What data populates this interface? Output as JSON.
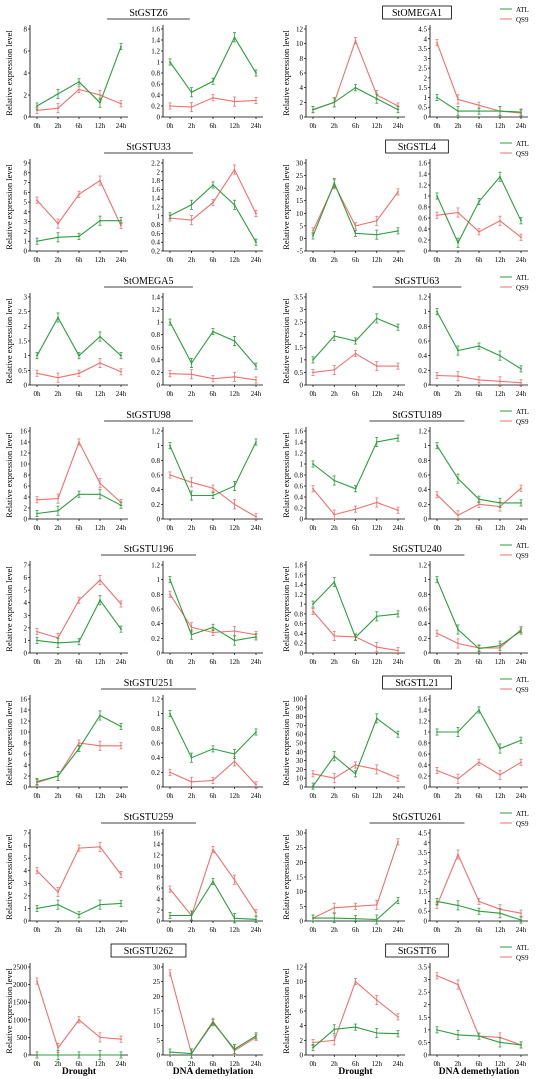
{
  "figure": {
    "ylabel": "Relative expression level",
    "bottom_labels": [
      "Drought",
      "DNA demethylation",
      "Drought",
      "DNA demethylation"
    ],
    "legend": {
      "atl_label": "ATL",
      "qs9_label": "QS9"
    },
    "colors": {
      "atl": "#2e9e3f",
      "qs9": "#f0706f"
    }
  },
  "chart_data": [
    {
      "type": "line",
      "title": "StGSTZ6",
      "title_boxed": false,
      "x": [
        "0h",
        "2h",
        "6h",
        "12h",
        "24h"
      ],
      "left": {
        "ylim": [
          0,
          8
        ],
        "yticks": [
          0,
          2,
          4,
          6,
          8
        ],
        "ATL": [
          1,
          2.1,
          3.2,
          1.3,
          6.4
        ],
        "QS9": [
          0.6,
          0.8,
          2.5,
          2,
          1.2
        ]
      },
      "right": {
        "ylim": [
          0,
          1.6
        ],
        "yticks": [
          0,
          0.2,
          0.4,
          0.6,
          0.8,
          1,
          1.2,
          1.4,
          1.6
        ],
        "ATL": [
          1,
          0.45,
          0.65,
          1.45,
          0.8
        ],
        "QS9": [
          0.2,
          0.18,
          0.35,
          0.28,
          0.3
        ]
      }
    },
    {
      "type": "line",
      "title": "StOMEGA1",
      "title_boxed": true,
      "x": [
        "0h",
        "2h",
        "6h",
        "12h",
        "24h"
      ],
      "left": {
        "ylim": [
          0,
          12
        ],
        "yticks": [
          0,
          2,
          4,
          6,
          8,
          10,
          12
        ],
        "ATL": [
          1,
          2,
          4,
          2.5,
          1
        ],
        "QS9": [
          1,
          2,
          10.4,
          3,
          1.5
        ]
      },
      "right": {
        "ylim": [
          0,
          4.5
        ],
        "yticks": [
          0,
          0.5,
          1,
          1.5,
          2,
          2.5,
          3,
          3.5,
          4,
          4.5
        ],
        "ATL": [
          1,
          0.3,
          0.3,
          0.3,
          0.25
        ],
        "QS9": [
          3.8,
          0.9,
          0.6,
          0.3,
          0.2
        ]
      }
    },
    {
      "type": "line",
      "title": "StGSTU33",
      "title_boxed": false,
      "x": [
        "0h",
        "2h",
        "6h",
        "12h",
        "24h"
      ],
      "left": {
        "ylim": [
          0,
          9
        ],
        "yticks": [
          0,
          1,
          2,
          3,
          4,
          5,
          6,
          7,
          8,
          9
        ],
        "ATL": [
          1,
          1.4,
          1.5,
          3.1,
          3.1
        ],
        "QS9": [
          5.2,
          2.8,
          5.8,
          7.2,
          2.6
        ]
      },
      "right": {
        "ylim": [
          0.2,
          2.2
        ],
        "yticks": [
          0.2,
          0.4,
          0.6,
          0.8,
          1,
          1.2,
          1.4,
          1.6,
          1.8,
          2,
          2.2
        ],
        "ATL": [
          1,
          1.25,
          1.7,
          1.25,
          0.4
        ],
        "QS9": [
          0.95,
          0.9,
          1.3,
          2.05,
          1.05
        ]
      }
    },
    {
      "type": "line",
      "title": "StGSTL4",
      "title_boxed": true,
      "x": [
        "0h",
        "2h",
        "6h",
        "12h",
        "24h"
      ],
      "left": {
        "ylim": [
          -5,
          30
        ],
        "yticks": [
          -5,
          0,
          5,
          10,
          15,
          20,
          25,
          30
        ],
        "ATL": [
          1,
          22,
          2,
          1.5,
          3
        ],
        "QS9": [
          3,
          21.5,
          5,
          7,
          18.5
        ]
      },
      "right": {
        "ylim": [
          0,
          1.6
        ],
        "yticks": [
          0,
          0.2,
          0.4,
          0.6,
          0.8,
          1,
          1.2,
          1.4,
          1.6
        ],
        "ATL": [
          1,
          0.15,
          0.9,
          1.35,
          0.55
        ],
        "QS9": [
          0.65,
          0.7,
          0.35,
          0.55,
          0.25
        ]
      }
    },
    {
      "type": "line",
      "title": "StOMEGA5",
      "title_boxed": false,
      "x": [
        "0h",
        "2h",
        "6h",
        "12h",
        "24h"
      ],
      "left": {
        "ylim": [
          0,
          3
        ],
        "yticks": [
          0,
          0.5,
          1,
          1.5,
          2,
          2.5,
          3
        ],
        "ATL": [
          1,
          2.3,
          1,
          1.65,
          1
        ],
        "QS9": [
          0.4,
          0.25,
          0.4,
          0.75,
          0.45
        ]
      },
      "right": {
        "ylim": [
          0,
          1.4
        ],
        "yticks": [
          0,
          0.2,
          0.4,
          0.6,
          0.8,
          1,
          1.2,
          1.4
        ],
        "ATL": [
          1,
          0.35,
          0.85,
          0.7,
          0.3
        ],
        "QS9": [
          0.18,
          0.17,
          0.1,
          0.13,
          0.08
        ]
      }
    },
    {
      "type": "line",
      "title": "StGSTU63",
      "title_boxed": false,
      "x": [
        "0h",
        "2h",
        "6h",
        "12h",
        "24h"
      ],
      "left": {
        "ylim": [
          0,
          3.5
        ],
        "yticks": [
          0,
          0.5,
          1,
          1.5,
          2,
          2.5,
          3,
          3.5
        ],
        "ATL": [
          1,
          1.95,
          1.75,
          2.65,
          2.3
        ],
        "QS9": [
          0.5,
          0.6,
          1.25,
          0.75,
          0.75
        ]
      },
      "right": {
        "ylim": [
          0,
          1.2
        ],
        "yticks": [
          0,
          0.2,
          0.4,
          0.6,
          0.8,
          1,
          1.2
        ],
        "ATL": [
          1,
          0.47,
          0.53,
          0.4,
          0.22
        ],
        "QS9": [
          0.13,
          0.12,
          0.07,
          0.05,
          0.03
        ]
      }
    },
    {
      "type": "line",
      "title": "StGSTU98",
      "title_boxed": false,
      "x": [
        "0h",
        "2h",
        "6h",
        "12h",
        "24h"
      ],
      "left": {
        "ylim": [
          0,
          16
        ],
        "yticks": [
          0,
          2,
          4,
          6,
          8,
          10,
          12,
          14,
          16
        ],
        "ATL": [
          1,
          1.5,
          4.5,
          4.5,
          2.5
        ],
        "QS9": [
          3.5,
          3.7,
          14,
          6.5,
          3
        ]
      },
      "right": {
        "ylim": [
          0,
          1.2
        ],
        "yticks": [
          0,
          0.2,
          0.4,
          0.6,
          0.8,
          1,
          1.2
        ],
        "ATL": [
          1,
          0.32,
          0.32,
          0.45,
          1.05
        ],
        "QS9": [
          0.6,
          0.5,
          0.42,
          0.2,
          0.03
        ]
      }
    },
    {
      "type": "line",
      "title": "StGSTU189",
      "title_boxed": false,
      "x": [
        "0h",
        "2h",
        "6h",
        "12h",
        "24h"
      ],
      "left": {
        "ylim": [
          0,
          1.6
        ],
        "yticks": [
          0,
          0.2,
          0.4,
          0.6,
          0.8,
          1,
          1.2,
          1.4,
          1.6
        ],
        "ATL": [
          1,
          0.7,
          0.55,
          1.4,
          1.47
        ],
        "QS9": [
          0.55,
          0.08,
          0.18,
          0.3,
          0.16
        ]
      },
      "right": {
        "ylim": [
          0,
          1.2
        ],
        "yticks": [
          0,
          0.2,
          0.4,
          0.6,
          0.8,
          1,
          1.2
        ],
        "ATL": [
          1,
          0.55,
          0.27,
          0.22,
          0.22
        ],
        "QS9": [
          0.33,
          0.05,
          0.2,
          0.17,
          0.42
        ]
      }
    },
    {
      "type": "line",
      "title": "StGSTU196",
      "title_boxed": false,
      "x": [
        "0h",
        "2h",
        "6h",
        "12h",
        "24h"
      ],
      "left": {
        "ylim": [
          0,
          7
        ],
        "yticks": [
          0,
          1,
          2,
          3,
          4,
          5,
          6,
          7
        ],
        "ATL": [
          1,
          0.8,
          0.9,
          4.2,
          1.9
        ],
        "QS9": [
          1.7,
          1.2,
          4.2,
          5.8,
          3.9
        ]
      },
      "right": {
        "ylim": [
          0,
          1.2
        ],
        "yticks": [
          0,
          0.2,
          0.4,
          0.6,
          0.8,
          1,
          1.2
        ],
        "ATL": [
          1,
          0.25,
          0.35,
          0.17,
          0.22
        ],
        "QS9": [
          0.8,
          0.35,
          0.28,
          0.3,
          0.25
        ]
      }
    },
    {
      "type": "line",
      "title": "StGSTU240",
      "title_boxed": false,
      "x": [
        "0h",
        "2h",
        "6h",
        "12h",
        "24h"
      ],
      "left": {
        "ylim": [
          0,
          1.8
        ],
        "yticks": [
          0,
          0.2,
          0.4,
          0.6,
          0.8,
          1,
          1.2,
          1.4,
          1.6,
          1.8
        ],
        "ATL": [
          1,
          1.45,
          0.32,
          0.75,
          0.8
        ],
        "QS9": [
          0.85,
          0.35,
          0.33,
          0.12,
          0.05
        ]
      },
      "right": {
        "ylim": [
          0,
          1.2
        ],
        "yticks": [
          0,
          0.2,
          0.4,
          0.6,
          0.8,
          1,
          1.2
        ],
        "ATL": [
          1,
          0.32,
          0.06,
          0.1,
          0.3
        ],
        "QS9": [
          0.27,
          0.13,
          0.07,
          0.07,
          0.32
        ]
      }
    },
    {
      "type": "line",
      "title": "StGSTU251",
      "title_boxed": false,
      "x": [
        "0h",
        "2h",
        "6h",
        "12h",
        "24h"
      ],
      "left": {
        "ylim": [
          0,
          16
        ],
        "yticks": [
          0,
          2,
          4,
          6,
          8,
          10,
          12,
          14,
          16
        ],
        "ATL": [
          1,
          2,
          7,
          13,
          11
        ],
        "QS9": [
          0.8,
          2,
          8,
          7.5,
          7.5
        ]
      },
      "right": {
        "ylim": [
          0,
          1.2
        ],
        "yticks": [
          0,
          0.2,
          0.4,
          0.6,
          0.8,
          1,
          1.2
        ],
        "ATL": [
          1,
          0.4,
          0.52,
          0.45,
          0.75
        ],
        "QS9": [
          0.2,
          0.07,
          0.09,
          0.35,
          0.03
        ]
      }
    },
    {
      "type": "line",
      "title": "StGSTL21",
      "title_boxed": true,
      "x": [
        "0h",
        "2h",
        "6h",
        "12h",
        "24h"
      ],
      "left": {
        "ylim": [
          0,
          100
        ],
        "yticks": [
          0,
          10,
          20,
          30,
          40,
          50,
          60,
          70,
          80,
          90,
          100
        ],
        "ATL": [
          1,
          35,
          15,
          78,
          60
        ],
        "QS9": [
          15,
          10,
          25,
          20,
          10
        ]
      },
      "right": {
        "ylim": [
          0,
          1.6
        ],
        "yticks": [
          0,
          0.2,
          0.4,
          0.6,
          0.8,
          1,
          1.2,
          1.4,
          1.6
        ],
        "ATL": [
          1,
          1,
          1.4,
          0.7,
          0.85
        ],
        "QS9": [
          0.3,
          0.15,
          0.45,
          0.22,
          0.45
        ]
      }
    },
    {
      "type": "line",
      "title": "StGSTU259",
      "title_boxed": false,
      "x": [
        "0h",
        "2h",
        "6h",
        "12h",
        "24h"
      ],
      "left": {
        "ylim": [
          0,
          7
        ],
        "yticks": [
          0,
          1,
          2,
          3,
          4,
          5,
          6,
          7
        ],
        "ATL": [
          1,
          1.3,
          0.5,
          1.3,
          1.4
        ],
        "QS9": [
          4,
          2.3,
          5.8,
          5.9,
          3.7
        ]
      },
      "right": {
        "ylim": [
          0,
          16
        ],
        "yticks": [
          0,
          2,
          4,
          6,
          8,
          10,
          12,
          14,
          16
        ],
        "ATL": [
          1,
          1,
          7.2,
          0.5,
          0.3
        ],
        "QS9": [
          5.8,
          1,
          13,
          7.5,
          1.5
        ]
      }
    },
    {
      "type": "line",
      "title": "StGSTU261",
      "title_boxed": false,
      "x": [
        "0h",
        "2h",
        "6h",
        "12h",
        "24h"
      ],
      "left": {
        "ylim": [
          0,
          30
        ],
        "yticks": [
          0,
          5,
          10,
          15,
          20,
          25,
          30
        ],
        "ATL": [
          1,
          1,
          0.8,
          0.5,
          7
        ],
        "QS9": [
          1,
          4.5,
          5,
          5.5,
          27
        ]
      },
      "right": {
        "ylim": [
          0,
          4.5
        ],
        "yticks": [
          0,
          0.5,
          1,
          1.5,
          2,
          2.5,
          3,
          3.5,
          4,
          4.5
        ],
        "ATL": [
          1,
          0.8,
          0.5,
          0.4,
          0.05
        ],
        "QS9": [
          0.8,
          3.4,
          1,
          0.6,
          0.4
        ]
      }
    },
    {
      "type": "line",
      "title": "StGSTU262",
      "title_boxed": true,
      "x": [
        "0h",
        "2h",
        "6h",
        "12h",
        "24h"
      ],
      "left": {
        "ylim": [
          0,
          2500
        ],
        "yticks": [
          0,
          500,
          1000,
          1500,
          2000,
          2500
        ],
        "ATL": [
          1,
          1,
          1,
          1,
          1
        ],
        "QS9": [
          2100,
          200,
          1000,
          500,
          450
        ]
      },
      "right": {
        "ylim": [
          0,
          30
        ],
        "yticks": [
          0,
          5,
          10,
          15,
          20,
          25,
          30
        ],
        "ATL": [
          1,
          0.5,
          11,
          2,
          6.5
        ],
        "QS9": [
          28,
          0.5,
          11.5,
          1.5,
          6
        ]
      }
    },
    {
      "type": "line",
      "title": "StGSTT6",
      "title_boxed": true,
      "x": [
        "0h",
        "2h",
        "6h",
        "12h",
        "24h"
      ],
      "left": {
        "ylim": [
          0,
          12
        ],
        "yticks": [
          0,
          2,
          4,
          6,
          8,
          10,
          12
        ],
        "ATL": [
          1,
          3.5,
          3.8,
          3,
          2.9
        ],
        "QS9": [
          1.7,
          2,
          10,
          7.5,
          5.2
        ]
      },
      "right": {
        "ylim": [
          0,
          3.5
        ],
        "yticks": [
          0,
          0.5,
          1,
          1.5,
          2,
          2.5,
          3,
          3.5
        ],
        "ATL": [
          1,
          0.8,
          0.75,
          0.5,
          0.4
        ],
        "QS9": [
          3.15,
          2.8,
          0.75,
          0.7,
          0.4
        ]
      }
    }
  ]
}
